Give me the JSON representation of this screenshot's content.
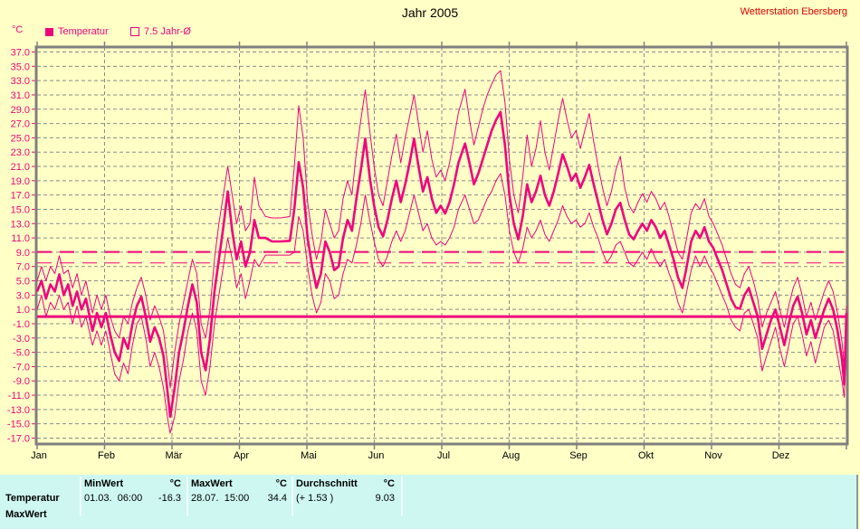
{
  "header": {
    "title": "Jahr 2005",
    "station": "Wetterstation Ebersberg"
  },
  "legend": {
    "series1_label": "Temperatur",
    "series2_label": "7.5 Jahr-Ø"
  },
  "axis": {
    "unit": "°C"
  },
  "colors": {
    "background": "#FFFFC6",
    "magenta": "#F0047E",
    "grid": "#8B8B8B",
    "frame": "#808080",
    "station_red": "#DF0000",
    "table_bg": "#CEF7F1",
    "text": "#000000"
  },
  "chart_data": {
    "type": "line",
    "title": "Jahr 2005",
    "ylabel": "°C",
    "ylim": [
      -17,
      37
    ],
    "ytick_step": 2,
    "grid": true,
    "legend_position": "top-left",
    "months": [
      "Jan",
      "Feb",
      "Mär",
      "Apr",
      "Mai",
      "Jun",
      "Jul",
      "Aug",
      "Sep",
      "Okt",
      "Nov",
      "Dez"
    ],
    "days_total": 365,
    "reference_lines": [
      {
        "name": "zero-reference",
        "value": 0.0,
        "style": "solid",
        "width": 3
      },
      {
        "name": "year-average",
        "value": 9.03,
        "style": "dashed",
        "width": 2
      },
      {
        "name": "seven-point-five-year-average",
        "value": 7.5,
        "style": "dashed",
        "width": 1
      }
    ],
    "series_names": [
      "min",
      "avg",
      "max"
    ],
    "points_format": [
      "day_of_year",
      "min",
      "avg",
      "max"
    ],
    "points": [
      [
        0,
        1,
        3.5,
        5
      ],
      [
        2,
        3,
        5,
        7
      ],
      [
        4,
        0,
        2.5,
        5
      ],
      [
        6,
        2,
        4.5,
        7
      ],
      [
        8,
        1,
        3.5,
        6
      ],
      [
        10,
        3,
        5.9,
        8.5
      ],
      [
        12,
        1,
        3,
        6
      ],
      [
        14,
        2,
        4.5,
        6.5
      ],
      [
        16,
        -1,
        1.5,
        4
      ],
      [
        18,
        1.5,
        3.5,
        6
      ],
      [
        20,
        -1.5,
        1,
        3
      ],
      [
        22,
        0,
        2.5,
        5
      ],
      [
        25,
        -4,
        -2,
        0.5
      ],
      [
        27,
        -2,
        0.5,
        3
      ],
      [
        29,
        -4,
        -1.5,
        1
      ],
      [
        31,
        -2,
        0.5,
        3
      ],
      [
        33,
        -5,
        -2.5,
        0
      ],
      [
        35,
        -8,
        -5,
        -2
      ],
      [
        37,
        -9,
        -6.2,
        -3
      ],
      [
        39,
        -6.5,
        -3,
        0
      ],
      [
        41,
        -8,
        -4.5,
        -1
      ],
      [
        43,
        -4,
        -1,
        2
      ],
      [
        45,
        -1,
        1.5,
        4
      ],
      [
        47,
        0,
        2.8,
        5.5
      ],
      [
        49,
        -3,
        0,
        3
      ],
      [
        51,
        -7,
        -3.5,
        -0.5
      ],
      [
        53,
        -5,
        -1.5,
        1.5
      ],
      [
        55,
        -7,
        -3,
        0
      ],
      [
        57,
        -10,
        -5.5,
        -2
      ],
      [
        59,
        -14.5,
        -11,
        -7
      ],
      [
        60,
        -16.3,
        -14,
        -10
      ],
      [
        62,
        -14,
        -10,
        -5
      ],
      [
        64,
        -9,
        -5,
        -1
      ],
      [
        66,
        -6,
        -2,
        2
      ],
      [
        68,
        -2,
        1.5,
        5
      ],
      [
        70,
        0.5,
        4.5,
        8
      ],
      [
        72,
        -2,
        2,
        6
      ],
      [
        74,
        -9,
        -5,
        -1
      ],
      [
        76,
        -11,
        -7.5,
        -3
      ],
      [
        78,
        -7,
        -3,
        1
      ],
      [
        80,
        -1,
        3.5,
        8
      ],
      [
        82,
        3,
        8,
        13
      ],
      [
        84,
        7,
        12.5,
        17
      ],
      [
        86,
        11,
        17.5,
        21
      ],
      [
        88,
        8,
        12,
        17
      ],
      [
        90,
        4,
        8,
        13
      ],
      [
        92,
        6,
        10.5,
        15.5
      ],
      [
        94,
        2.5,
        7,
        12
      ],
      [
        96,
        5,
        9,
        13
      ],
      [
        98,
        8,
        13.5,
        19.5
      ],
      [
        100,
        7,
        11,
        15.5
      ],
      [
        103,
        8.6,
        11,
        14
      ],
      [
        106,
        8.6,
        10.5,
        13.8
      ],
      [
        110,
        8.6,
        10.5,
        13.8
      ],
      [
        114,
        8.6,
        10.6,
        14
      ],
      [
        116,
        9,
        15,
        21
      ],
      [
        118,
        14,
        21.6,
        29.5
      ],
      [
        120,
        12,
        18,
        25
      ],
      [
        122,
        7,
        11,
        16
      ],
      [
        124,
        3,
        7,
        11.5
      ],
      [
        126,
        0.5,
        4,
        8
      ],
      [
        128,
        2,
        6,
        10.5
      ],
      [
        130,
        6,
        10.5,
        15
      ],
      [
        132,
        5,
        9,
        13
      ],
      [
        134,
        2.5,
        6.5,
        11
      ],
      [
        136,
        3,
        7,
        12
      ],
      [
        138,
        6,
        11,
        16.5
      ],
      [
        140,
        8,
        13.5,
        19
      ],
      [
        142,
        7.5,
        12,
        17
      ],
      [
        144,
        10,
        16.5,
        23
      ],
      [
        146,
        13,
        20.5,
        27.5
      ],
      [
        148,
        17,
        24.9,
        31.7
      ],
      [
        150,
        13.5,
        19.5,
        26
      ],
      [
        152,
        10.5,
        15.5,
        21
      ],
      [
        154,
        8,
        12.5,
        17
      ],
      [
        156,
        7,
        11.2,
        15.5
      ],
      [
        158,
        8.5,
        13.5,
        19
      ],
      [
        160,
        10.5,
        16.5,
        22.5
      ],
      [
        162,
        12,
        19,
        25.5
      ],
      [
        164,
        10.5,
        16,
        21.5
      ],
      [
        166,
        12,
        18.5,
        25
      ],
      [
        168,
        14.5,
        21.5,
        28
      ],
      [
        170,
        17,
        24.9,
        31
      ],
      [
        172,
        14.5,
        21,
        27
      ],
      [
        174,
        12,
        17.5,
        23
      ],
      [
        176,
        13,
        19.5,
        26
      ],
      [
        178,
        11,
        16.5,
        22
      ],
      [
        180,
        10,
        14.5,
        19.5
      ],
      [
        182,
        10.5,
        15.5,
        20.5
      ],
      [
        184,
        10,
        14.4,
        19
      ],
      [
        186,
        11,
        16,
        21.5
      ],
      [
        188,
        12.5,
        18.5,
        25
      ],
      [
        190,
        15,
        21.5,
        28.5
      ],
      [
        193,
        17,
        24.2,
        31.8
      ],
      [
        195,
        15,
        21.5,
        27.5
      ],
      [
        197,
        13,
        18.5,
        24
      ],
      [
        199,
        13.5,
        20,
        26.5
      ],
      [
        201,
        15,
        22,
        29
      ],
      [
        203,
        16.5,
        24,
        31
      ],
      [
        205,
        17.5,
        26,
        32.5
      ],
      [
        207,
        19,
        27.5,
        33.8
      ],
      [
        209,
        20,
        28.6,
        34.4
      ],
      [
        211,
        17,
        24,
        30
      ],
      [
        213,
        12,
        17,
        22
      ],
      [
        215,
        9,
        13,
        17
      ],
      [
        217,
        7.5,
        10.8,
        14.5
      ],
      [
        219,
        9.5,
        14,
        19.5
      ],
      [
        221,
        12.5,
        18.5,
        25.4
      ],
      [
        223,
        11,
        16,
        21
      ],
      [
        225,
        12,
        17.5,
        23.5
      ],
      [
        227,
        13.5,
        19.7,
        27.4
      ],
      [
        229,
        11.5,
        17,
        23
      ],
      [
        231,
        10.5,
        15.5,
        20.5
      ],
      [
        233,
        12,
        17.5,
        24
      ],
      [
        235,
        13.5,
        20,
        27.5
      ],
      [
        237,
        15.5,
        22.7,
        30.5
      ],
      [
        239,
        14,
        21,
        27.5
      ],
      [
        241,
        13,
        19,
        25
      ],
      [
        243,
        13.5,
        20,
        26
      ],
      [
        245,
        12.5,
        18,
        23.5
      ],
      [
        247,
        13,
        19.5,
        26
      ],
      [
        249,
        14.5,
        21.2,
        28.4
      ],
      [
        251,
        12.5,
        18.5,
        24.5
      ],
      [
        253,
        11,
        16,
        21
      ],
      [
        255,
        9,
        13.5,
        18
      ],
      [
        257,
        7.5,
        11.5,
        15.5
      ],
      [
        259,
        8.5,
        13,
        17.5
      ],
      [
        261,
        10,
        15,
        20.5
      ],
      [
        263,
        10.5,
        15.9,
        22.4
      ],
      [
        265,
        9,
        13.5,
        18
      ],
      [
        267,
        7.5,
        11.5,
        15.5
      ],
      [
        269,
        7,
        10.8,
        14.5
      ],
      [
        271,
        8,
        12,
        16
      ],
      [
        273,
        9,
        13,
        17.2
      ],
      [
        275,
        8,
        12,
        16
      ],
      [
        277,
        9.5,
        13.5,
        17.5
      ],
      [
        279,
        8,
        12.5,
        16.5
      ],
      [
        281,
        7,
        11,
        15
      ],
      [
        283,
        8,
        12,
        16
      ],
      [
        285,
        6,
        10,
        14
      ],
      [
        287,
        4.5,
        8,
        11.5
      ],
      [
        289,
        2,
        5.5,
        9
      ],
      [
        291,
        0.5,
        4,
        8
      ],
      [
        293,
        3.5,
        7,
        11
      ],
      [
        295,
        6.5,
        10.5,
        14.5
      ],
      [
        297,
        8.5,
        12,
        15.8
      ],
      [
        299,
        7,
        11,
        15
      ],
      [
        301,
        8.5,
        12.5,
        16.5
      ],
      [
        303,
        7,
        10.5,
        14
      ],
      [
        305,
        6,
        9.6,
        13
      ],
      [
        307,
        4.5,
        8,
        11.5
      ],
      [
        309,
        3,
        6.5,
        10
      ],
      [
        311,
        1.5,
        4.5,
        8
      ],
      [
        313,
        -0.5,
        2.5,
        6
      ],
      [
        315,
        -1.5,
        1.3,
        4.5
      ],
      [
        317,
        -2,
        1.1,
        4
      ],
      [
        319,
        0.5,
        3,
        6
      ],
      [
        321,
        1,
        4,
        7
      ],
      [
        323,
        -1,
        2,
        5
      ],
      [
        325,
        -3,
        0,
        2.5
      ],
      [
        327,
        -7.6,
        -4.5,
        -1.5
      ],
      [
        329,
        -5.5,
        -2.5,
        0.5
      ],
      [
        331,
        -3.5,
        -0.5,
        2
      ],
      [
        333,
        -1.5,
        1,
        3.5
      ],
      [
        335,
        -4.5,
        -1.5,
        1
      ],
      [
        337,
        -7,
        -4,
        -1.5
      ],
      [
        339,
        -4,
        -1,
        1.5
      ],
      [
        341,
        -1,
        1.5,
        4
      ],
      [
        343,
        0,
        2.8,
        5.5
      ],
      [
        345,
        -2.5,
        0.5,
        3
      ],
      [
        347,
        -5.5,
        -2.5,
        0
      ],
      [
        349,
        -3.5,
        -0.5,
        2
      ],
      [
        351,
        -6.5,
        -3,
        -0.5
      ],
      [
        353,
        -4,
        -1,
        1.5
      ],
      [
        355,
        -1.5,
        1,
        3.5
      ],
      [
        357,
        -0.5,
        2.5,
        5
      ],
      [
        359,
        -2,
        1,
        3.5
      ],
      [
        361,
        -5.5,
        -2,
        0.5
      ],
      [
        363,
        -9,
        -6,
        -3.5
      ],
      [
        364,
        -11.3,
        -9.5,
        -7
      ],
      [
        365,
        -2,
        0.5,
        1.5
      ]
    ]
  },
  "table": {
    "row_label": "Temperatur",
    "next_row_label_partial": "MaxWert",
    "columns": [
      {
        "header": "MinWert",
        "unit": "°C",
        "value_left": "01.03.  06:00",
        "value_right": "-16.3"
      },
      {
        "header": "MaxWert",
        "unit": "°C",
        "value_left": "28.07.  15:00",
        "value_right": "34.4"
      },
      {
        "header": "Durchschnitt",
        "unit": "°C",
        "value_left": "(+ 1.53 )",
        "value_right": "9.03"
      }
    ]
  }
}
